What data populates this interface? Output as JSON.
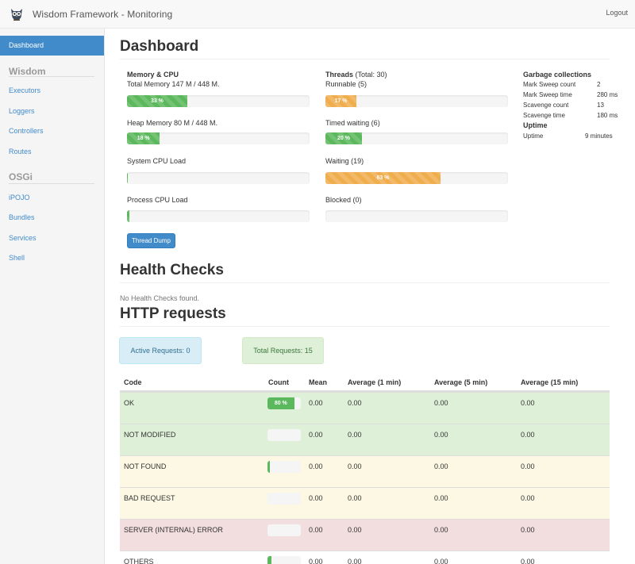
{
  "app": {
    "title": "Wisdom Framework - Monitoring",
    "logout_label": "Logout"
  },
  "sidebar": {
    "items_top": [
      {
        "label": "Dashboard",
        "active": true
      }
    ],
    "section_wisdom": "Wisdom",
    "wisdom_items": [
      {
        "label": "Executors"
      },
      {
        "label": "Loggers"
      },
      {
        "label": "Controllers"
      },
      {
        "label": "Routes"
      }
    ],
    "section_osgi": "OSGi",
    "osgi_items": [
      {
        "label": "iPOJO"
      },
      {
        "label": "Bundles"
      },
      {
        "label": "Services"
      },
      {
        "label": "Shell"
      }
    ]
  },
  "dashboard": {
    "title": "Dashboard",
    "memory": {
      "header": "Memory & CPU",
      "total_memory_label": "Total Memory 147 M / 448 M.",
      "total_memory_percent": 33,
      "total_memory_text": "33 %",
      "heap_memory_label": "Heap Memory 80 M / 448 M.",
      "heap_memory_percent": 18,
      "heap_memory_text": "18 %",
      "system_cpu_label": "System CPU Load",
      "system_cpu_percent": 0.5,
      "process_cpu_label": "Process CPU Load",
      "process_cpu_percent": 1.5,
      "thread_dump_label": "Thread Dump"
    },
    "threads": {
      "header": "Threads",
      "total_text": "(Total: 30)",
      "runnable_label": "Runnable (5)",
      "runnable_percent": 17,
      "runnable_text": "17 %",
      "timed_waiting_label": "Timed waiting (6)",
      "timed_waiting_percent": 20,
      "timed_waiting_text": "20 %",
      "waiting_label": "Waiting (19)",
      "waiting_percent": 63,
      "waiting_text": "63 %",
      "blocked_label": "Blocked (0)",
      "blocked_percent": 0
    },
    "gc": {
      "header": "Garbage collections",
      "rows": [
        {
          "key": "Mark Sweep count",
          "value": "2"
        },
        {
          "key": "Mark Sweep time",
          "value": "280 ms"
        },
        {
          "key": "Scavenge count",
          "value": "13"
        },
        {
          "key": "Scavenge time",
          "value": "180 ms"
        }
      ],
      "uptime_header": "Uptime",
      "uptime_key": "Uptime",
      "uptime_value": "9 minutes"
    }
  },
  "health": {
    "title": "Health Checks",
    "empty_text": "No Health Checks found."
  },
  "http": {
    "title": "HTTP requests",
    "active_requests": "Active Requests: 0",
    "total_requests": "Total Requests: 15",
    "columns": [
      "Code",
      "Count",
      "Mean",
      "Average (1 min)",
      "Average (5 min)",
      "Average (15 min)"
    ],
    "rows": [
      {
        "code": "OK",
        "count_percent": 80,
        "count_text": "80 %",
        "mean": "0.00",
        "avg1": "0.00",
        "avg5": "0.00",
        "avg15": "0.00",
        "status": "success"
      },
      {
        "code": "NOT MODIFIED",
        "count_percent": 0,
        "count_text": "",
        "mean": "0.00",
        "avg1": "0.00",
        "avg5": "0.00",
        "avg15": "0.00",
        "status": "success"
      },
      {
        "code": "NOT FOUND",
        "count_percent": 7,
        "count_text": "",
        "mean": "0.00",
        "avg1": "0.00",
        "avg5": "0.00",
        "avg15": "0.00",
        "status": "warning"
      },
      {
        "code": "BAD REQUEST",
        "count_percent": 0,
        "count_text": "",
        "mean": "0.00",
        "avg1": "0.00",
        "avg5": "0.00",
        "avg15": "0.00",
        "status": "warning"
      },
      {
        "code": "SERVER (INTERNAL) ERROR",
        "count_percent": 0,
        "count_text": "",
        "mean": "0.00",
        "avg1": "0.00",
        "avg5": "0.00",
        "avg15": "0.00",
        "status": "danger"
      },
      {
        "code": "OTHERS",
        "count_percent": 13,
        "count_text": "",
        "mean": "0.00",
        "avg1": "0.00",
        "avg5": "0.00",
        "avg15": "0.00",
        "status": "plain"
      }
    ]
  },
  "colors": {
    "primary": "#428bca",
    "success": "#5cb85c",
    "warning": "#f0ad4e"
  }
}
